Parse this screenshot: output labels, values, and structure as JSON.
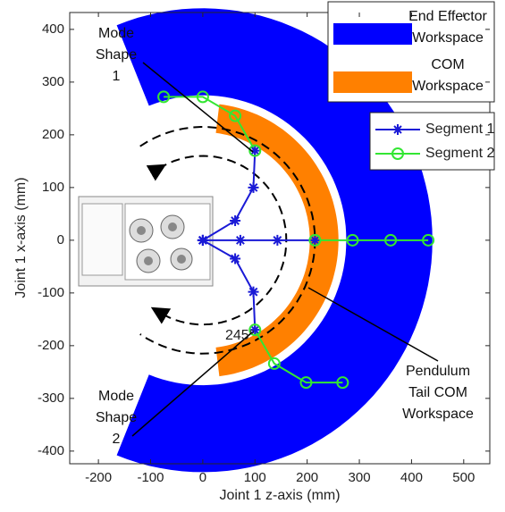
{
  "chart_data": {
    "type": "line",
    "xlabel": "Joint 1 z-axis (mm)",
    "ylabel": "Joint 1 x-axis (mm)",
    "xlim": [
      -255,
      550
    ],
    "ylim": [
      -424,
      432
    ],
    "xticks": [
      -200,
      -100,
      0,
      100,
      200,
      300,
      400,
      500
    ],
    "yticks": [
      -400,
      -300,
      -200,
      -100,
      0,
      100,
      200,
      300,
      400
    ],
    "regions": [
      {
        "name": "End Effector\nWorkspace",
        "color": "#0000ff",
        "r": [
          275,
          440
        ],
        "angle": [
          -112,
          112
        ]
      },
      {
        "name": "COM\nWorkspace",
        "color": "#ff8000",
        "r": [
          205,
          260
        ],
        "angle": [
          -83,
          83
        ]
      }
    ],
    "series": [
      {
        "name": "Segment 1",
        "color": "#1a1ad6",
        "marker": "asterisk",
        "x": [
          0,
          72,
          143,
          215,
          null,
          0,
          62,
          97,
          100,
          null,
          0,
          62,
          97,
          100
        ],
        "values": [
          0,
          0,
          0,
          0,
          null,
          0,
          37,
          100,
          170,
          null,
          0,
          -35,
          -98,
          -170
        ]
      },
      {
        "name": "Segment 2",
        "color": "#33e633",
        "marker": "circle",
        "x": [
          215,
          287,
          360,
          432,
          null,
          100,
          62,
          0,
          -75,
          null,
          100,
          137,
          198,
          268
        ],
        "values": [
          0,
          0,
          0,
          0,
          null,
          170,
          236,
          272,
          272,
          null,
          -170,
          -234,
          -270,
          -270
        ]
      }
    ],
    "annotations": [
      "Mode\nShape\n1",
      "Mode\nShape\n2",
      "Pendulum\nTail COM\nWorkspace",
      "245°"
    ]
  }
}
